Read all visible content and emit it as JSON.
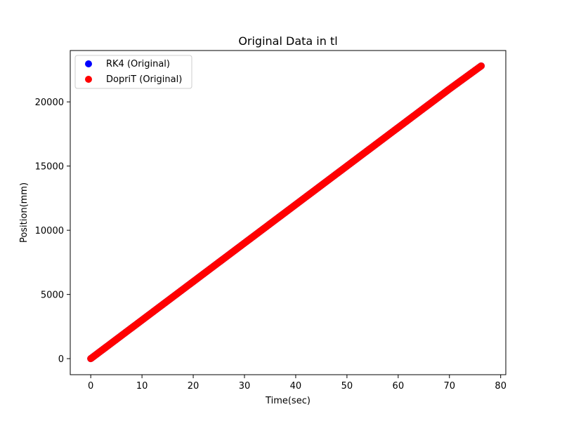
{
  "chart_data": {
    "type": "scatter",
    "title": "Original Data in tl",
    "xlabel": "Time(sec)",
    "ylabel": "Position(mm)",
    "xlim": [
      -4,
      81
    ],
    "ylim": [
      -1250,
      24000
    ],
    "xticks": [
      0,
      10,
      20,
      30,
      40,
      50,
      60,
      70,
      80
    ],
    "xtick_labels": [
      "0",
      "10",
      "20",
      "30",
      "40",
      "50",
      "60",
      "70",
      "80"
    ],
    "yticks": [
      0,
      5000,
      10000,
      15000,
      20000
    ],
    "ytick_labels": [
      "0",
      "5000",
      "10000",
      "15000",
      "20000"
    ],
    "grid": false,
    "legend_position": "top-left",
    "series": [
      {
        "name": "RK4 (Original)",
        "color": "#0000ff",
        "x": [
          0,
          5,
          10,
          15,
          20,
          25,
          30,
          35,
          40,
          45,
          50,
          55,
          60,
          65,
          70,
          76.2
        ],
        "y": [
          0,
          1500,
          3000,
          4500,
          6000,
          7500,
          9000,
          10500,
          12000,
          13500,
          15000,
          16500,
          18000,
          19500,
          21000,
          22800
        ]
      },
      {
        "name": "DopriT (Original)",
        "color": "#ff0000",
        "x": [
          0,
          5,
          10,
          15,
          20,
          25,
          30,
          35,
          40,
          45,
          50,
          55,
          60,
          65,
          70,
          76.2
        ],
        "y": [
          0,
          1500,
          3000,
          4500,
          6000,
          7500,
          9000,
          10500,
          12000,
          13500,
          15000,
          16500,
          18000,
          19500,
          21000,
          22800
        ]
      }
    ]
  }
}
